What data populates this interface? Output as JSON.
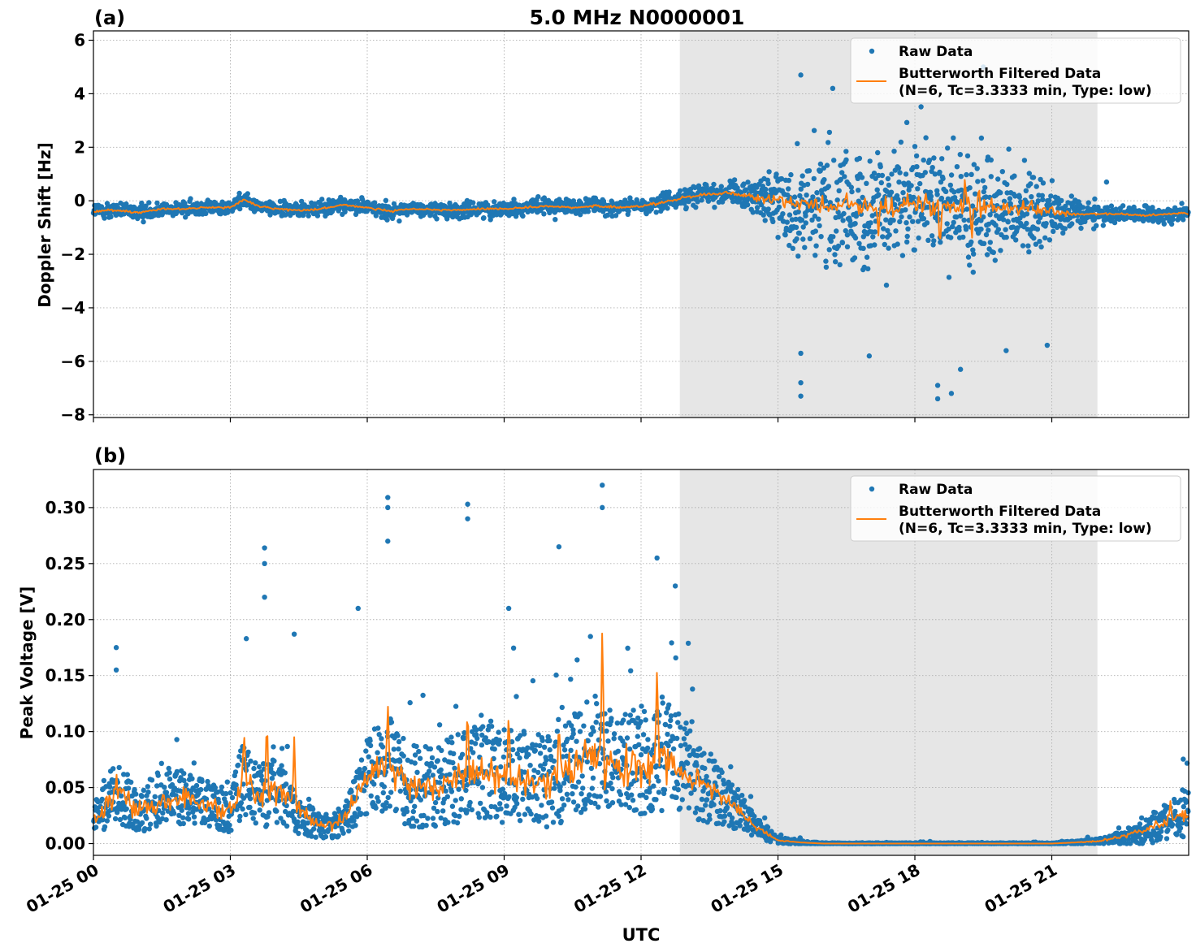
{
  "figure": {
    "title": "5.0 MHz N0000001",
    "xlabel": "UTC",
    "colors": {
      "raw": "#1f77b4",
      "filtered": "#ff7f0e",
      "shade": "#e6e6e6",
      "grid": "#b0b0b0"
    }
  },
  "legend": {
    "raw_label": "Raw Data",
    "filtered_label_line1": "Butterworth Filtered Data",
    "filtered_label_line2": "(N=6, Tc=3.3333 min, Type: low)"
  },
  "chart_data": [
    {
      "type": "scatter",
      "panel_label": "(a)",
      "title": "5.0 MHz N0000001",
      "xlabel": "",
      "ylabel": "Doppler Shift [Hz]",
      "xlim_hours": [
        0,
        24
      ],
      "ylim": [
        -8.1,
        6.35
      ],
      "yticks": [
        -8,
        -6,
        -4,
        -2,
        0,
        2,
        4,
        6
      ],
      "ytick_labels": [
        "−8",
        "−6",
        "−4",
        "−2",
        "0",
        "2",
        "4",
        "6"
      ],
      "xticks_hours": [
        0,
        3,
        6,
        9,
        12,
        15,
        18,
        21
      ],
      "shaded_span_hours": [
        12.85,
        22.0
      ],
      "grid": true,
      "legend_position": "top-right",
      "series": [
        {
          "name": "Raw Data",
          "kind": "points",
          "hours": [
            0,
            0.5,
            1,
            1.5,
            2,
            2.5,
            3,
            3.3,
            3.6,
            4,
            4.5,
            5,
            5.5,
            6,
            6.5,
            7,
            7.5,
            8,
            8.5,
            9,
            9.5,
            10,
            10.5,
            11,
            11.5,
            12,
            12.5,
            13,
            13.5,
            14,
            14.5,
            15,
            15.5,
            16,
            16.5,
            17,
            17.5,
            18,
            18.5,
            19,
            19.5,
            20,
            20.5,
            21,
            21.5,
            22,
            22.5,
            23,
            23.5,
            24
          ],
          "center_hz": [
            -0.4,
            -0.35,
            -0.45,
            -0.3,
            -0.3,
            -0.25,
            -0.25,
            0.05,
            -0.2,
            -0.3,
            -0.35,
            -0.3,
            -0.15,
            -0.25,
            -0.4,
            -0.3,
            -0.35,
            -0.35,
            -0.3,
            -0.3,
            -0.25,
            -0.2,
            -0.25,
            -0.2,
            -0.25,
            -0.2,
            -0.05,
            0.15,
            0.25,
            0.3,
            0.1,
            0.05,
            -0.1,
            -0.2,
            -0.2,
            -0.2,
            -0.25,
            -0.1,
            -0.2,
            -0.3,
            -0.2,
            -0.3,
            -0.3,
            -0.4,
            -0.5,
            -0.5,
            -0.5,
            -0.55,
            -0.5,
            -0.45
          ],
          "spread_hz": [
            0.35,
            0.35,
            0.35,
            0.35,
            0.35,
            0.35,
            0.35,
            0.35,
            0.35,
            0.35,
            0.35,
            0.35,
            0.35,
            0.35,
            0.35,
            0.35,
            0.35,
            0.35,
            0.35,
            0.35,
            0.35,
            0.35,
            0.35,
            0.35,
            0.35,
            0.35,
            0.4,
            0.45,
            0.45,
            0.45,
            0.9,
            1.5,
            2.4,
            2.7,
            2.8,
            2.8,
            2.8,
            2.8,
            2.9,
            2.8,
            2.7,
            2.5,
            1.9,
            1.3,
            0.8,
            0.5,
            0.4,
            0.35,
            0.35,
            0.35
          ],
          "outliers": [
            [
              15.5,
              -7.3
            ],
            [
              15.5,
              -6.8
            ],
            [
              15.5,
              -5.7
            ],
            [
              15.5,
              4.7
            ],
            [
              18.5,
              -7.4
            ],
            [
              18.5,
              -6.9
            ],
            [
              18.8,
              -7.2
            ],
            [
              19.0,
              -6.3
            ],
            [
              17.0,
              -5.8
            ],
            [
              20.0,
              -5.6
            ],
            [
              20.9,
              -5.4
            ],
            [
              16.2,
              4.2
            ],
            [
              19.5,
              5.0
            ],
            [
              22.2,
              0.7
            ]
          ]
        },
        {
          "name": "Butterworth Filtered Data",
          "kind": "line",
          "hours": [
            0,
            0.5,
            1,
            1.5,
            2,
            2.5,
            3,
            3.3,
            3.6,
            4,
            4.5,
            5,
            5.5,
            6,
            6.5,
            7,
            7.5,
            8,
            8.5,
            9,
            9.5,
            10,
            10.5,
            11,
            11.5,
            12,
            12.5,
            13,
            13.5,
            14,
            14.5,
            15,
            15.5,
            16,
            16.5,
            17,
            17.5,
            18,
            18.5,
            19,
            19.5,
            20,
            20.5,
            21,
            21.5,
            22,
            22.5,
            23,
            23.5,
            24
          ],
          "values": [
            -0.4,
            -0.35,
            -0.45,
            -0.3,
            -0.3,
            -0.25,
            -0.25,
            0.05,
            -0.2,
            -0.3,
            -0.35,
            -0.3,
            -0.15,
            -0.25,
            -0.4,
            -0.3,
            -0.35,
            -0.35,
            -0.3,
            -0.3,
            -0.25,
            -0.2,
            -0.25,
            -0.2,
            -0.25,
            -0.2,
            -0.05,
            0.15,
            0.25,
            0.3,
            0.1,
            0.05,
            -0.1,
            -0.2,
            -0.2,
            -0.2,
            -0.25,
            -0.1,
            -0.2,
            -0.3,
            -0.2,
            -0.3,
            -0.3,
            -0.4,
            -0.5,
            -0.5,
            -0.5,
            -0.55,
            -0.5,
            -0.45
          ],
          "noise_hz": [
            0.05,
            0.05,
            0.05,
            0.05,
            0.05,
            0.05,
            0.05,
            0.05,
            0.05,
            0.05,
            0.05,
            0.05,
            0.05,
            0.05,
            0.05,
            0.05,
            0.05,
            0.05,
            0.05,
            0.05,
            0.05,
            0.05,
            0.05,
            0.05,
            0.05,
            0.05,
            0.07,
            0.08,
            0.08,
            0.08,
            0.15,
            0.25,
            0.35,
            0.4,
            0.4,
            0.42,
            0.45,
            0.5,
            0.55,
            0.5,
            0.45,
            0.4,
            0.3,
            0.2,
            0.1,
            0.06,
            0.05,
            0.05,
            0.05,
            0.05
          ],
          "spikes": [
            [
              18.55,
              -1.8
            ],
            [
              19.1,
              1.0
            ],
            [
              19.25,
              -1.5
            ],
            [
              19.4,
              0.6
            ],
            [
              17.2,
              -1.3
            ],
            [
              16.5,
              0.35
            ],
            [
              21.0,
              -0.2
            ]
          ]
        }
      ]
    },
    {
      "type": "scatter",
      "panel_label": "(b)",
      "xlabel": "UTC",
      "ylabel": "Peak Voltage [V]",
      "xlim_hours": [
        0,
        24
      ],
      "ylim": [
        -0.0105,
        0.334
      ],
      "yticks": [
        0.0,
        0.05,
        0.1,
        0.15,
        0.2,
        0.25,
        0.3
      ],
      "ytick_labels": [
        "0.00",
        "0.05",
        "0.10",
        "0.15",
        "0.20",
        "0.25",
        "0.30"
      ],
      "xticks_hours": [
        0,
        3,
        6,
        9,
        12,
        15,
        18,
        21
      ],
      "xtick_labels": [
        "01-25 00",
        "01-25 03",
        "01-25 06",
        "01-25 09",
        "01-25 12",
        "01-25 15",
        "01-25 18",
        "01-25 21"
      ],
      "shaded_span_hours": [
        12.85,
        22.0
      ],
      "grid": true,
      "legend_position": "top-right",
      "series": [
        {
          "name": "Raw Data",
          "kind": "points",
          "hours": [
            0,
            0.5,
            1,
            1.5,
            2,
            2.5,
            3,
            3.3,
            3.6,
            4,
            4.5,
            5,
            5.5,
            6,
            6.5,
            7,
            7.5,
            8,
            8.5,
            9,
            9.5,
            10,
            10.5,
            11,
            11.5,
            12,
            12.5,
            13,
            13.5,
            14,
            14.5,
            15,
            15.5,
            16,
            16.5,
            17,
            17.5,
            18,
            18.5,
            19,
            19.5,
            20,
            20.5,
            21,
            21.5,
            22,
            22.5,
            23,
            23.5,
            24
          ],
          "center_v": [
            0.025,
            0.045,
            0.03,
            0.045,
            0.04,
            0.035,
            0.03,
            0.06,
            0.04,
            0.05,
            0.025,
            0.015,
            0.02,
            0.06,
            0.07,
            0.05,
            0.05,
            0.06,
            0.065,
            0.06,
            0.06,
            0.055,
            0.07,
            0.08,
            0.07,
            0.075,
            0.08,
            0.065,
            0.05,
            0.035,
            0.015,
            0.003,
            0.001,
            0.0,
            0.0,
            0.0,
            0.0,
            0.0,
            0.0,
            0.0,
            0.0,
            0.0,
            0.0,
            0.0,
            0.001,
            0.002,
            0.005,
            0.01,
            0.02,
            0.025
          ],
          "spread_v": [
            0.025,
            0.04,
            0.03,
            0.04,
            0.035,
            0.03,
            0.03,
            0.05,
            0.04,
            0.045,
            0.025,
            0.015,
            0.02,
            0.05,
            0.06,
            0.055,
            0.05,
            0.06,
            0.06,
            0.06,
            0.06,
            0.06,
            0.065,
            0.07,
            0.065,
            0.07,
            0.075,
            0.06,
            0.045,
            0.03,
            0.015,
            0.004,
            0.002,
            0.001,
            0.001,
            0.001,
            0.001,
            0.001,
            0.001,
            0.001,
            0.001,
            0.001,
            0.001,
            0.001,
            0.002,
            0.003,
            0.008,
            0.015,
            0.025,
            0.03
          ],
          "outliers": [
            [
              0.5,
              0.175
            ],
            [
              0.5,
              0.155
            ],
            [
              3.75,
              0.264
            ],
            [
              3.75,
              0.25
            ],
            [
              3.75,
              0.22
            ],
            [
              4.4,
              0.187
            ],
            [
              6.45,
              0.309
            ],
            [
              6.45,
              0.3
            ],
            [
              6.45,
              0.27
            ],
            [
              8.2,
              0.303
            ],
            [
              8.2,
              0.29
            ],
            [
              10.2,
              0.265
            ],
            [
              11.15,
              0.32
            ],
            [
              11.15,
              0.3
            ],
            [
              12.35,
              0.255
            ],
            [
              12.75,
              0.23
            ],
            [
              9.1,
              0.21
            ],
            [
              5.8,
              0.21
            ],
            [
              3.35,
              0.183
            ]
          ]
        },
        {
          "name": "Butterworth Filtered Data",
          "kind": "line",
          "hours": [
            0,
            0.5,
            1,
            1.5,
            2,
            2.5,
            3,
            3.3,
            3.6,
            4,
            4.5,
            5,
            5.5,
            6,
            6.5,
            7,
            7.5,
            8,
            8.5,
            9,
            9.5,
            10,
            10.5,
            11,
            11.5,
            12,
            12.5,
            13,
            13.5,
            14,
            14.5,
            15,
            15.5,
            16,
            16.5,
            17,
            17.5,
            18,
            18.5,
            19,
            19.5,
            20,
            20.5,
            21,
            21.5,
            22,
            22.5,
            23,
            23.5,
            24
          ],
          "values": [
            0.02,
            0.045,
            0.03,
            0.04,
            0.04,
            0.035,
            0.03,
            0.06,
            0.04,
            0.05,
            0.03,
            0.015,
            0.02,
            0.06,
            0.07,
            0.05,
            0.05,
            0.06,
            0.065,
            0.06,
            0.06,
            0.055,
            0.07,
            0.08,
            0.07,
            0.07,
            0.08,
            0.06,
            0.05,
            0.035,
            0.015,
            0.003,
            0.001,
            0.0,
            0.0,
            0.0,
            0.0,
            0.0,
            0.0,
            0.0,
            0.0,
            0.0,
            0.0,
            0.0,
            0.001,
            0.002,
            0.006,
            0.012,
            0.02,
            0.025
          ],
          "noise_v": [
            0.008,
            0.015,
            0.012,
            0.014,
            0.014,
            0.012,
            0.012,
            0.018,
            0.014,
            0.015,
            0.01,
            0.005,
            0.008,
            0.018,
            0.02,
            0.018,
            0.018,
            0.02,
            0.02,
            0.02,
            0.02,
            0.02,
            0.022,
            0.025,
            0.022,
            0.025,
            0.025,
            0.015,
            0.01,
            0.006,
            0.003,
            0.001,
            0.0,
            0.0,
            0.0,
            0.0,
            0.0,
            0.0,
            0.0,
            0.0,
            0.0,
            0.0,
            0.0,
            0.0,
            0.0,
            0.001,
            0.002,
            0.004,
            0.006,
            0.006
          ],
          "spikes": [
            [
              3.3,
              0.1
            ],
            [
              3.8,
              0.118
            ],
            [
              4.4,
              0.095
            ],
            [
              6.45,
              0.127
            ],
            [
              8.2,
              0.13
            ],
            [
              11.15,
              0.198
            ],
            [
              12.35,
              0.16
            ],
            [
              10.2,
              0.11
            ],
            [
              9.1,
              0.12
            ],
            [
              0.5,
              0.065
            ],
            [
              23.6,
              0.038
            ]
          ]
        }
      ]
    }
  ]
}
